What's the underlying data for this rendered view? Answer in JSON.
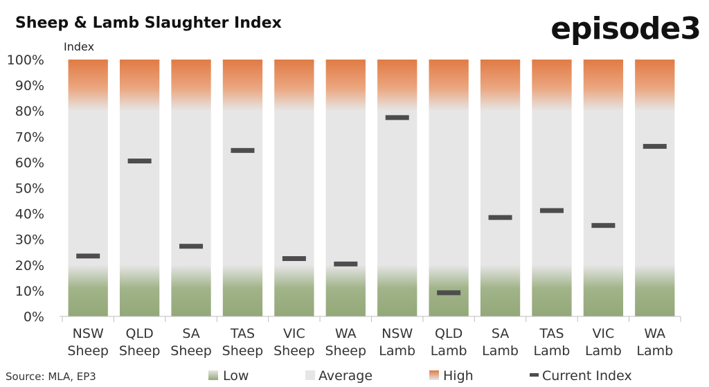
{
  "title": "Sheep & Lamb Slaughter Index",
  "logo_text": "episode3",
  "source": "Source: MLA, EP3",
  "chart_data": {
    "type": "bar",
    "ylabel": "Index",
    "ylim": [
      0,
      100
    ],
    "yticks": [
      "0%",
      "10%",
      "20%",
      "30%",
      "40%",
      "50%",
      "60%",
      "70%",
      "80%",
      "90%",
      "100%"
    ],
    "categories": [
      [
        "NSW",
        "Sheep"
      ],
      [
        "QLD",
        "Sheep"
      ],
      [
        "SA",
        "Sheep"
      ],
      [
        "TAS",
        "Sheep"
      ],
      [
        "VIC",
        "Sheep"
      ],
      [
        "WA",
        "Sheep"
      ],
      [
        "NSW",
        "Lamb"
      ],
      [
        "QLD",
        "Lamb"
      ],
      [
        "SA",
        "Lamb"
      ],
      [
        "TAS",
        "Lamb"
      ],
      [
        "VIC",
        "Lamb"
      ],
      [
        "WA",
        "Lamb"
      ]
    ],
    "bands": [
      {
        "name": "Low",
        "from": 0,
        "to": 20,
        "color": "#93a878"
      },
      {
        "name": "Average",
        "from": 20,
        "to": 80,
        "color": "#e6e6e6"
      },
      {
        "name": "High",
        "from": 80,
        "to": 100,
        "color": "#e07b45"
      }
    ],
    "series": [
      {
        "name": "Current Index",
        "values": [
          23.5,
          60.5,
          27.3,
          64.6,
          22.5,
          20.4,
          77.4,
          9.2,
          38.5,
          41.2,
          35.4,
          66.2
        ],
        "color": "#4d4d4d"
      }
    ],
    "legend": [
      "Low",
      "Average",
      "High",
      "Current Index"
    ],
    "legend_position": "bottom",
    "grid": false
  }
}
